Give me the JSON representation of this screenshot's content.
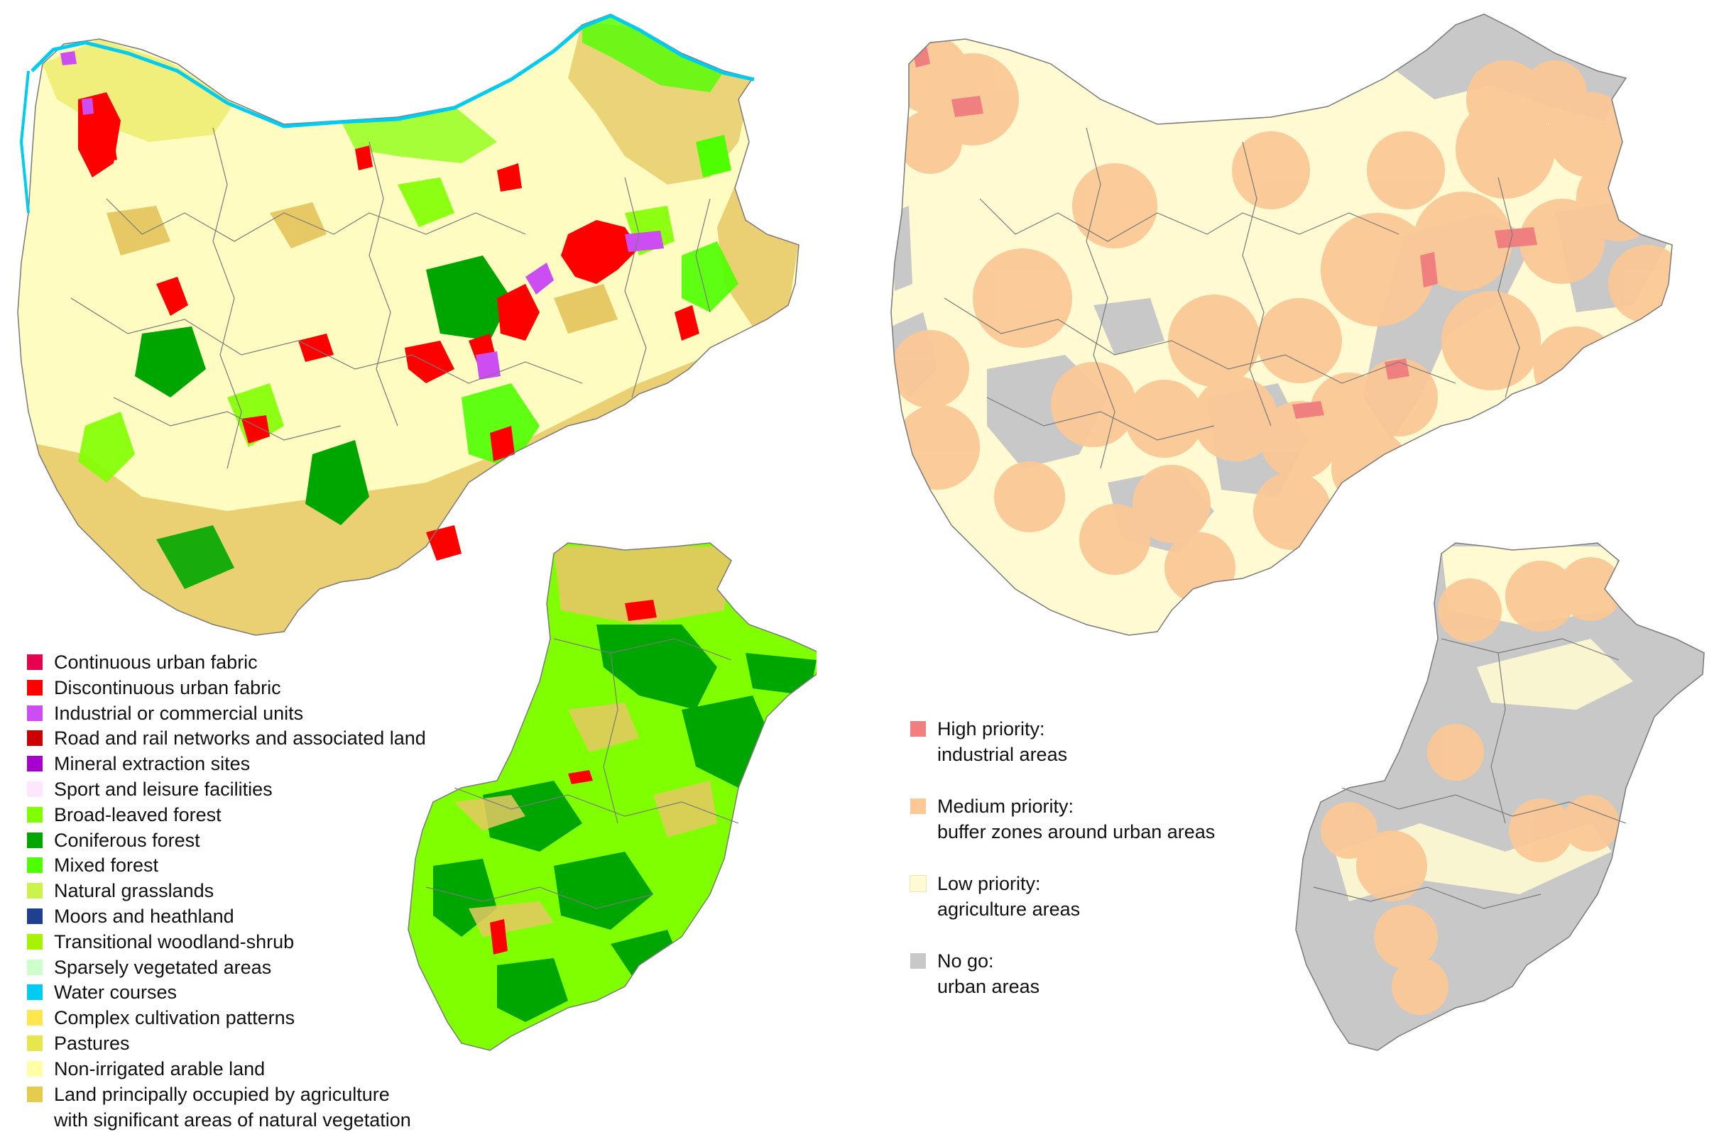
{
  "colors": {
    "agri_natural": "#e6c864",
    "arable": "#fefcc0",
    "pastures": "#e6e64c",
    "broadleaf": "#80ff00",
    "conifer": "#00a600",
    "mixed": "#4dff00",
    "urban": "#ff0000",
    "industrial": "#cc4df2",
    "water": "#00ccf2",
    "high": "#f08080",
    "medium": "#fbc896",
    "low": "#fffad2",
    "nogo": "#c8c8c8",
    "boundary": "#7a7a7a"
  },
  "land_cover_legend": [
    {
      "label": "Continuous urban fabric",
      "color": "#e6004d"
    },
    {
      "label": "Discontinuous urban fabric",
      "color": "#ff0000"
    },
    {
      "label": "Industrial or commercial units",
      "color": "#cc4df2"
    },
    {
      "label": "Road and rail networks and associated land",
      "color": "#cc0000"
    },
    {
      "label": "Mineral extraction sites",
      "color": "#a600cc"
    },
    {
      "label": "Sport and leisure facilities",
      "color": "#ffe6ff"
    },
    {
      "label": "Broad-leaved forest",
      "color": "#80ff00"
    },
    {
      "label": "Coniferous forest",
      "color": "#00a600"
    },
    {
      "label": "Mixed forest",
      "color": "#4dff00"
    },
    {
      "label": "Natural grasslands",
      "color": "#ccf24d"
    },
    {
      "label": "Moors and heathland",
      "color": "#1f3f8f"
    },
    {
      "label": "Transitional woodland-shrub",
      "color": "#a6f200"
    },
    {
      "label": "Sparsely vegetated areas",
      "color": "#ccffcc"
    },
    {
      "label": "Water courses",
      "color": "#00ccf2"
    },
    {
      "label": "Complex cultivation patterns",
      "color": "#ffe64d"
    },
    {
      "label": "Pastures",
      "color": "#e6e64d"
    },
    {
      "label": "Non-irrigated arable land",
      "color": "#ffffa8"
    },
    {
      "label": "Land principally occupied by agriculture",
      "label2": "with significant areas of natural vegetation",
      "color": "#e6cc4d"
    }
  ],
  "priority_legend": [
    {
      "line1": "High priority:",
      "line2": "industrial areas",
      "color": "#f08080"
    },
    {
      "line1": "Medium priority:",
      "line2": "buffer zones around urban areas",
      "color": "#fbc896"
    },
    {
      "line1": "Low priority:",
      "line2": "agriculture areas",
      "color": "#fffad2"
    },
    {
      "line1": "No go:",
      "line2": "urban areas",
      "color": "#c8c8c8"
    }
  ]
}
